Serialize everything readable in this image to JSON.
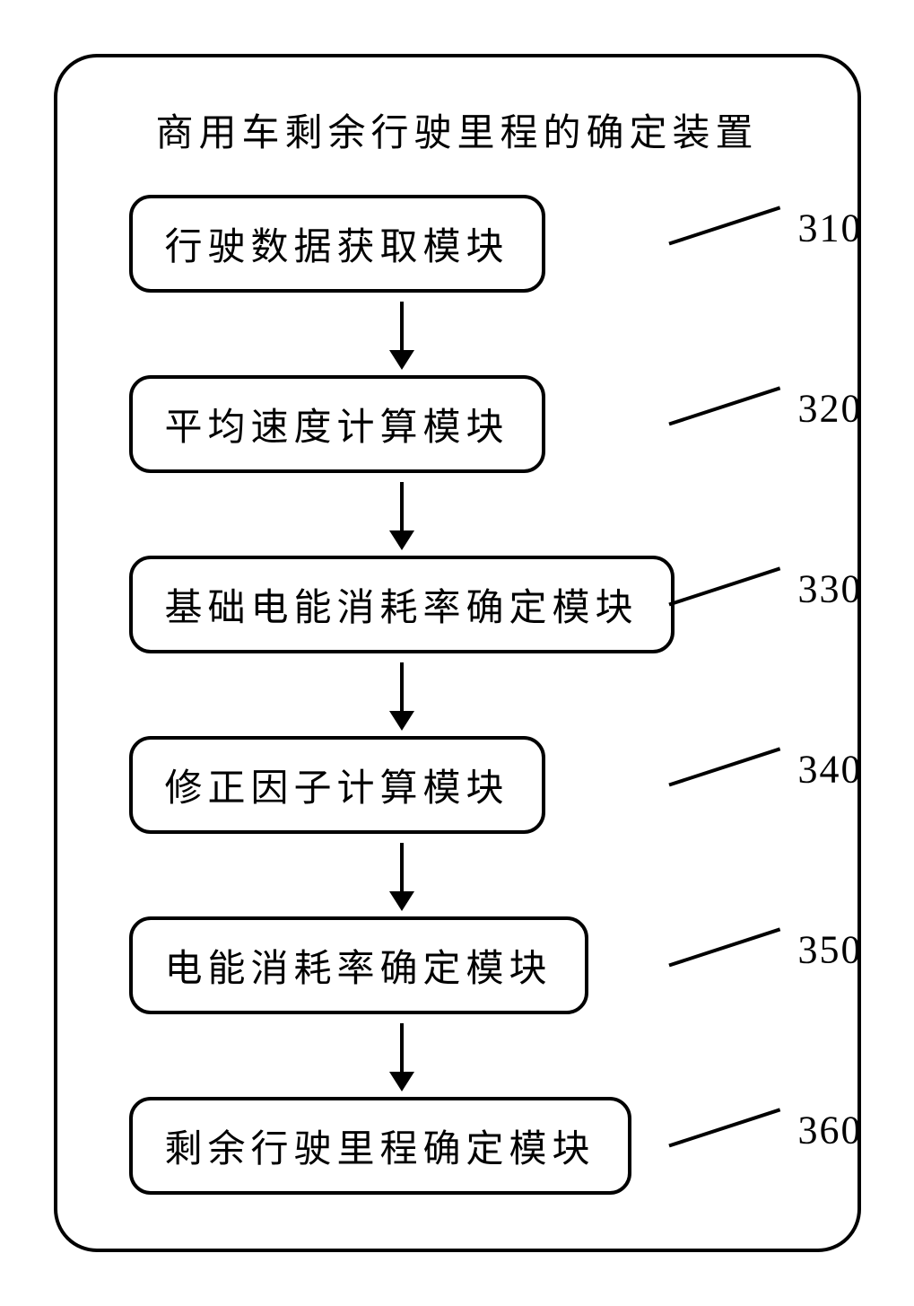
{
  "title": "商用车剩余行驶里程的确定装置",
  "modules": [
    {
      "label": "行驶数据获取模块",
      "ref": "310"
    },
    {
      "label": "平均速度计算模块",
      "ref": "320"
    },
    {
      "label": "基础电能消耗率确定模块",
      "ref": "330"
    },
    {
      "label": "修正因子计算模块",
      "ref": "340"
    },
    {
      "label": "电能消耗率确定模块",
      "ref": "350"
    },
    {
      "label": "剩余行驶里程确定模块",
      "ref": "360"
    }
  ],
  "style": {
    "border_color": "#000000",
    "border_width": 4,
    "outer_radius": 48,
    "module_radius": 24,
    "module_fontsize": 42,
    "title_fontsize": 42,
    "ref_fontsize": 44,
    "letter_spacing": 6,
    "arrow_shaft_height": 56,
    "arrow_head_width": 28,
    "arrow_head_height": 22,
    "lead_line_length": 130,
    "lead_line_angle_deg": -18,
    "background": "#ffffff",
    "font_family": "KaiTi"
  }
}
